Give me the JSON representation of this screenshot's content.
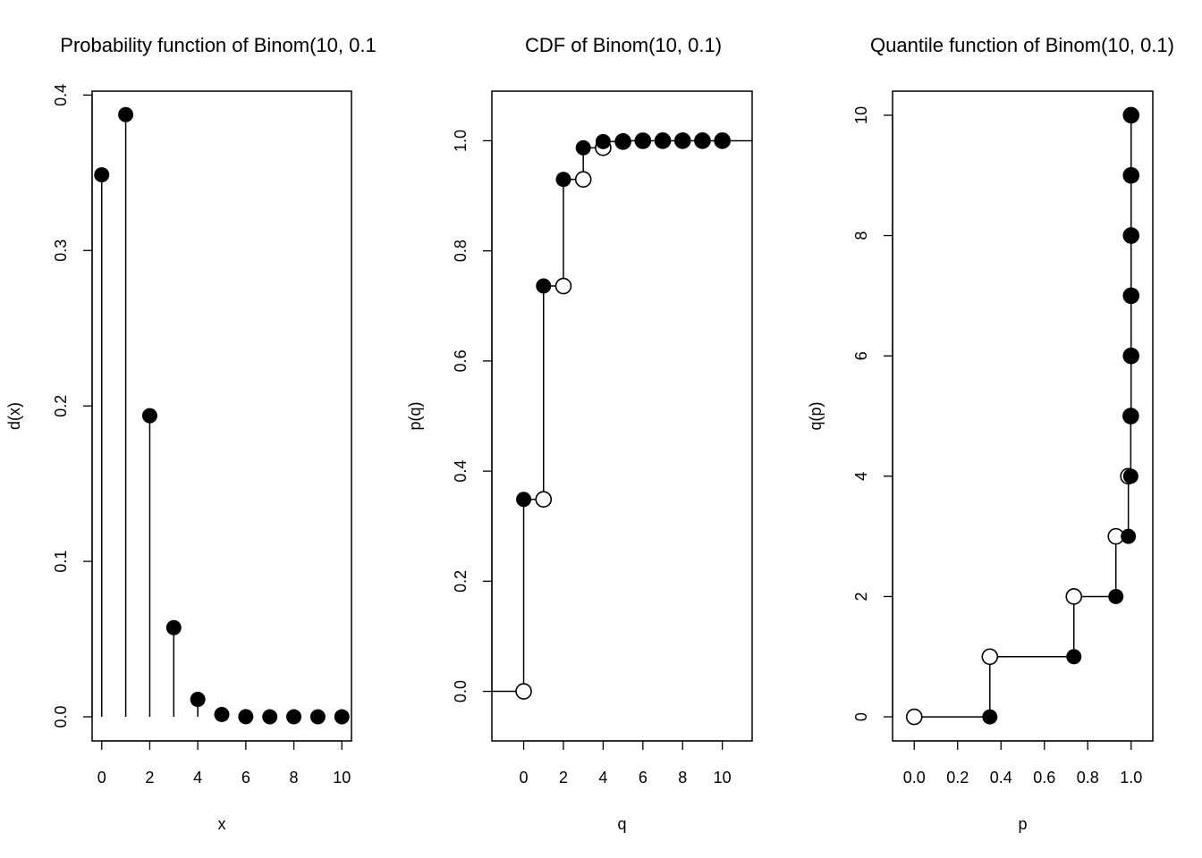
{
  "chart_data": [
    {
      "type": "scatter",
      "variant": "stem",
      "title": "Probability function of Binom(10, 0.1",
      "xlabel": "x",
      "ylabel": "d(x)",
      "xlim": [
        -0.4,
        10.4
      ],
      "ylim": [
        -0.0155,
        0.4025
      ],
      "xticks": [
        0,
        2,
        4,
        6,
        8,
        10
      ],
      "xtick_labels": [
        "0",
        "2",
        "4",
        "6",
        "8",
        "10"
      ],
      "yticks": [
        0.0,
        0.1,
        0.2,
        0.3,
        0.4
      ],
      "ytick_labels": [
        "0.0",
        "0.1",
        "0.2",
        "0.3",
        "0.4"
      ],
      "points": [
        {
          "x": 0,
          "y": 0.3487
        },
        {
          "x": 1,
          "y": 0.3874
        },
        {
          "x": 2,
          "y": 0.1937
        },
        {
          "x": 3,
          "y": 0.0574
        },
        {
          "x": 4,
          "y": 0.0112
        },
        {
          "x": 5,
          "y": 0.0015
        },
        {
          "x": 6,
          "y": 0.0001
        },
        {
          "x": 7,
          "y": 0.0
        },
        {
          "x": 8,
          "y": 0.0
        },
        {
          "x": 9,
          "y": 0.0
        },
        {
          "x": 10,
          "y": 0.0
        }
      ],
      "grid": false
    },
    {
      "type": "line",
      "variant": "step",
      "title": "CDF of Binom(10, 0.1)",
      "xlabel": "q",
      "ylabel": "p(q)",
      "xlim": [
        -1.6,
        11.5
      ],
      "ylim": [
        -0.09,
        1.09
      ],
      "xticks": [
        0,
        2,
        4,
        6,
        8,
        10
      ],
      "xtick_labels": [
        "0",
        "2",
        "4",
        "6",
        "8",
        "10"
      ],
      "yticks": [
        0.0,
        0.2,
        0.4,
        0.6,
        0.8,
        1.0
      ],
      "ytick_labels": [
        "0.0",
        "0.2",
        "0.4",
        "0.6",
        "0.8",
        "1.0"
      ],
      "closed_points": [
        {
          "x": 0,
          "y": 0.3487
        },
        {
          "x": 1,
          "y": 0.7361
        },
        {
          "x": 2,
          "y": 0.9298
        },
        {
          "x": 3,
          "y": 0.9872
        },
        {
          "x": 4,
          "y": 0.9984
        },
        {
          "x": 5,
          "y": 0.9999
        },
        {
          "x": 6,
          "y": 1.0
        },
        {
          "x": 7,
          "y": 1.0
        },
        {
          "x": 8,
          "y": 1.0
        },
        {
          "x": 9,
          "y": 1.0
        },
        {
          "x": 10,
          "y": 1.0
        }
      ],
      "open_points": [
        {
          "x": 0,
          "y": 0.0
        },
        {
          "x": 1,
          "y": 0.3487
        },
        {
          "x": 2,
          "y": 0.7361
        },
        {
          "x": 3,
          "y": 0.9298
        },
        {
          "x": 4,
          "y": 0.9872
        },
        {
          "x": 5,
          "y": 0.9984
        },
        {
          "x": 6,
          "y": 0.9999
        },
        {
          "x": 7,
          "y": 1.0
        },
        {
          "x": 8,
          "y": 1.0
        },
        {
          "x": 9,
          "y": 1.0
        },
        {
          "x": 10,
          "y": 1.0
        }
      ],
      "step_range": [
        -1.6,
        11.5
      ],
      "grid": false
    },
    {
      "type": "line",
      "variant": "step",
      "title": "Quantile function of Binom(10, 0.1)",
      "xlabel": "p",
      "ylabel": "q(p)",
      "xlim": [
        -0.1,
        1.1
      ],
      "ylim": [
        -0.4,
        10.4
      ],
      "xticks": [
        0.0,
        0.2,
        0.4,
        0.6,
        0.8,
        1.0
      ],
      "xtick_labels": [
        "0.0",
        "0.2",
        "0.4",
        "0.6",
        "0.8",
        "1.0"
      ],
      "yticks": [
        0,
        2,
        4,
        6,
        8,
        10
      ],
      "ytick_labels": [
        "0",
        "2",
        "4",
        "6",
        "8",
        "10"
      ],
      "closed_points": [
        {
          "x": 0.3487,
          "y": 0
        },
        {
          "x": 0.7361,
          "y": 1
        },
        {
          "x": 0.9298,
          "y": 2
        },
        {
          "x": 0.9872,
          "y": 3
        },
        {
          "x": 0.9984,
          "y": 4
        },
        {
          "x": 0.9999,
          "y": 5
        },
        {
          "x": 1.0,
          "y": 6
        },
        {
          "x": 1.0,
          "y": 7
        },
        {
          "x": 1.0,
          "y": 8
        },
        {
          "x": 1.0,
          "y": 9
        },
        {
          "x": 1.0,
          "y": 10
        }
      ],
      "open_points": [
        {
          "x": 0.0,
          "y": 0
        },
        {
          "x": 0.3487,
          "y": 1
        },
        {
          "x": 0.7361,
          "y": 2
        },
        {
          "x": 0.9298,
          "y": 3
        },
        {
          "x": 0.9872,
          "y": 4
        },
        {
          "x": 0.9984,
          "y": 5
        },
        {
          "x": 0.9999,
          "y": 6
        },
        {
          "x": 1.0,
          "y": 7
        },
        {
          "x": 1.0,
          "y": 8
        },
        {
          "x": 1.0,
          "y": 9
        },
        {
          "x": 1.0,
          "y": 10
        }
      ],
      "grid": false
    }
  ]
}
